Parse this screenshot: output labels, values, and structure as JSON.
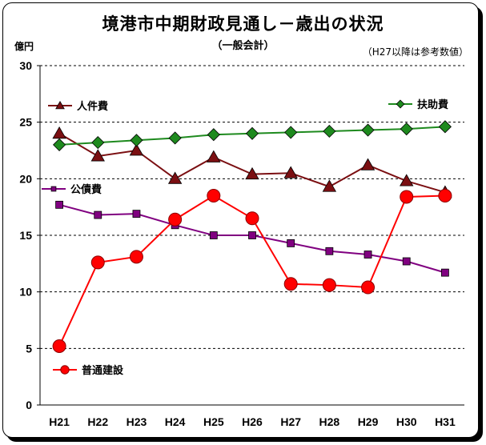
{
  "title": "境港市中期財政見通し－歳出の状況",
  "subtitle": "（一般会計）",
  "unit_label": "億円",
  "note": "（H27以降は参考数値）",
  "chart_data": {
    "type": "line",
    "categories": [
      "H21",
      "H22",
      "H23",
      "H24",
      "H25",
      "H26",
      "H27",
      "H28",
      "H29",
      "H30",
      "H31"
    ],
    "ylim": [
      0,
      30
    ],
    "yticks": [
      0,
      5,
      10,
      15,
      20,
      25,
      30
    ],
    "grid": true,
    "series": [
      {
        "name": "人件費",
        "color": "#7b0f12",
        "marker": "triangle",
        "values": [
          24.0,
          22.0,
          22.5,
          20.0,
          21.9,
          20.4,
          20.5,
          19.3,
          21.2,
          19.8,
          18.8
        ]
      },
      {
        "name": "扶助費",
        "color": "#1e8a1e",
        "marker": "diamond",
        "values": [
          23.0,
          23.2,
          23.4,
          23.6,
          23.9,
          24.0,
          24.1,
          24.2,
          24.3,
          24.4,
          24.6
        ]
      },
      {
        "name": "公債費",
        "color": "#800080",
        "marker": "square",
        "values": [
          17.7,
          16.8,
          16.9,
          15.9,
          15.0,
          15.0,
          14.3,
          13.6,
          13.3,
          12.7,
          11.7
        ]
      },
      {
        "name": "普通建設",
        "color": "#ff0000",
        "marker": "circle",
        "values": [
          5.2,
          12.6,
          13.1,
          16.4,
          18.5,
          16.5,
          10.7,
          10.6,
          10.4,
          18.4,
          18.5
        ]
      }
    ]
  }
}
